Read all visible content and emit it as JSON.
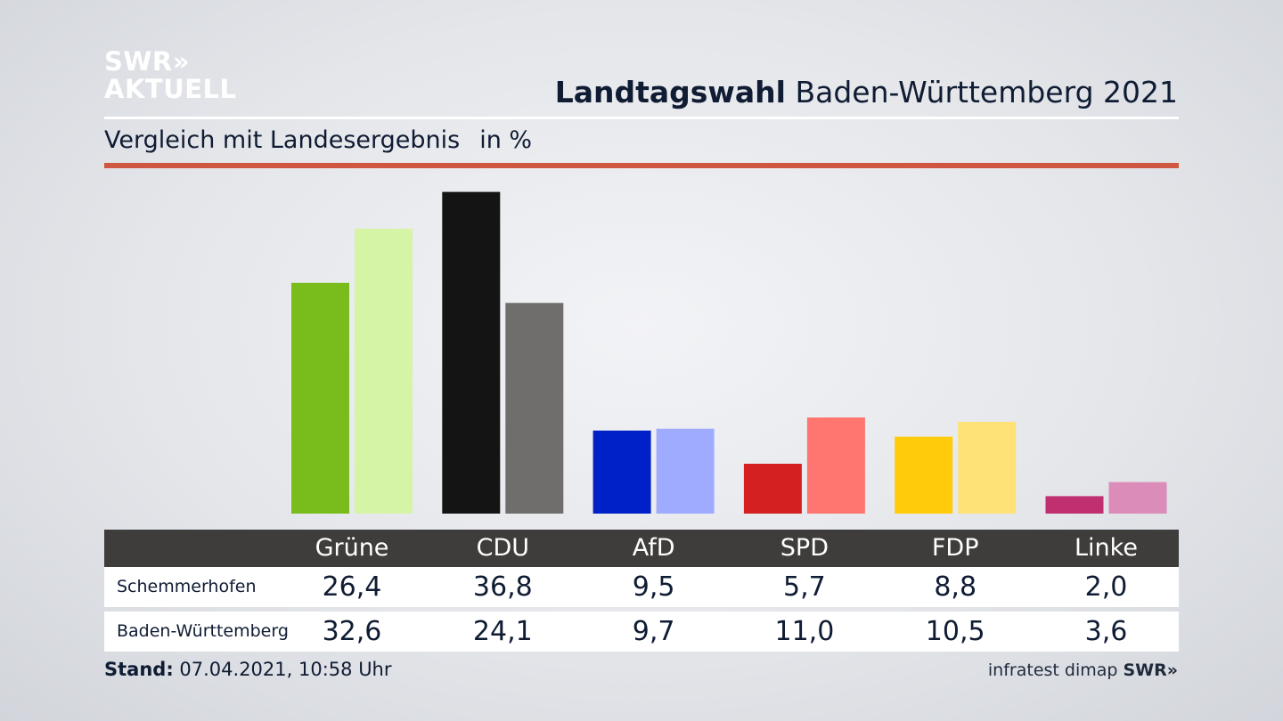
{
  "brand": {
    "logo_line1": "SWR»",
    "logo_line2": "AKTUELL",
    "footer_logo": "SWR»",
    "source": "infratest dimap"
  },
  "header": {
    "title_bold": "Landtagswahl",
    "title_rest": "Baden-Württemberg 2021",
    "subtitle": "Vergleich mit Landesergebnis",
    "unit": "in %"
  },
  "footer": {
    "stand_label": "Stand:",
    "stand_value": "07.04.2021, 10:58 Uhr"
  },
  "colors": {
    "accent_rule": "#cf5640",
    "table_header": "#3e3d3b"
  },
  "chart_data": {
    "type": "bar",
    "categories": [
      "Grüne",
      "CDU",
      "AfD",
      "SPD",
      "FDP",
      "Linke"
    ],
    "series": [
      {
        "name": "Schemmerhofen",
        "values": [
          26.4,
          36.8,
          9.5,
          5.7,
          8.8,
          2.0
        ],
        "labels": [
          "26,4",
          "36,8",
          "9,5",
          "5,7",
          "8,8",
          "2,0"
        ],
        "colors": [
          "#79bd1c",
          "#141414",
          "#0020c8",
          "#d42020",
          "#ffcb0a",
          "#c03070"
        ]
      },
      {
        "name": "Baden-Württemberg",
        "values": [
          32.6,
          24.1,
          9.7,
          11.0,
          10.5,
          3.6
        ],
        "labels": [
          "32,6",
          "24,1",
          "9,7",
          "11,0",
          "10,5",
          "3,6"
        ],
        "colors": [
          "#d5f4a6",
          "#706e6c",
          "#9eabff",
          "#ff7570",
          "#ffe277",
          "#dc8cb8"
        ]
      }
    ]
  }
}
